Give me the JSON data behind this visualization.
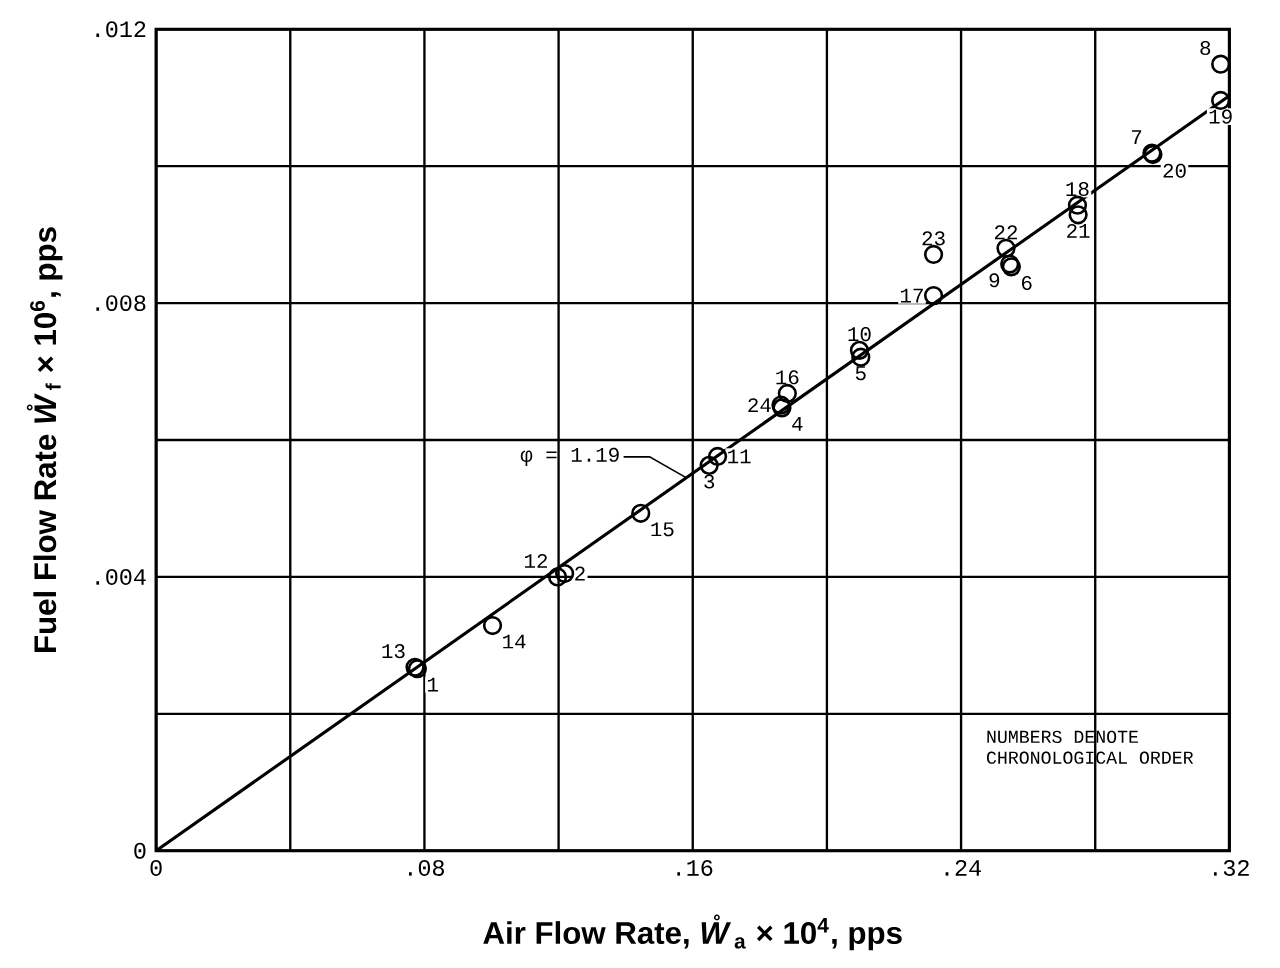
{
  "chart_data": {
    "type": "scatter",
    "xlabel": "Air Flow Rate, *W̊*$_{a}$ × 10$^{4}$, pps",
    "ylabel": "Fuel Flow Rate *W̊*$_{f}$ × 10$^{6}$, pps",
    "xlim": [
      0,
      0.32
    ],
    "ylim": [
      0,
      0.012
    ],
    "xticks": [
      0,
      {
        "value": 0.04,
        "label": null
      },
      {
        "value": 0.08,
        "label": ".08"
      },
      {
        "value": 0.12,
        "label": null
      },
      {
        "value": 0.16,
        "label": ".16"
      },
      {
        "value": 0.2,
        "label": null
      },
      {
        "value": 0.24,
        "label": ".24"
      },
      {
        "value": 0.28,
        "label": null
      },
      {
        "value": 0.32,
        "label": ".32"
      }
    ],
    "yticks": [
      0,
      {
        "value": 0.002,
        "label": null
      },
      {
        "value": 0.004,
        "label": ".004"
      },
      {
        "value": 0.006,
        "label": null
      },
      {
        "value": 0.008,
        "label": ".008"
      },
      {
        "value": 0.01,
        "label": null
      },
      {
        "value": 0.012,
        "label": ".012"
      }
    ],
    "grid": true,
    "marker": "circle",
    "series": [
      {
        "color": "#000000",
        "x": [
          0.0779,
          0.1218,
          0.1649,
          0.1866,
          0.2101,
          0.255,
          0.2969,
          0.3174,
          0.2545,
          0.2097,
          0.1674,
          0.1197,
          0.0772,
          0.1003,
          0.1445,
          0.1882,
          0.2318,
          0.2747,
          0.3174,
          0.2972,
          0.2749,
          0.2534,
          0.2318,
          0.1863
        ],
        "values": [
          0.00266,
          0.00405,
          0.00563,
          0.00647,
          0.00721,
          0.00853,
          0.01019,
          0.01149,
          0.00857,
          0.00731,
          0.00576,
          0.004,
          0.00268,
          0.00329,
          0.00493,
          0.00668,
          0.00811,
          0.00943,
          0.01096,
          0.01017,
          0.00929,
          0.0088,
          0.00871,
          0.00651
        ]
      },
      {
        "type": "line",
        "color": "#000000",
        "marker": "none",
        "x": [
          0,
          0.32
        ],
        "values": [
          0,
          0.01103
        ]
      }
    ],
    "annotations": [
      {
        "text": "1",
        "x": 0.0779,
        "y": 0.00266
      },
      {
        "text": "2",
        "x": 0.1218,
        "y": 0.00405
      },
      {
        "text": "3",
        "x": 0.1649,
        "y": 0.00563
      },
      {
        "text": "4",
        "x": 0.1866,
        "y": 0.00647
      },
      {
        "text": "5",
        "x": 0.2101,
        "y": 0.00721
      },
      {
        "text": "6",
        "x": 0.255,
        "y": 0.00853
      },
      {
        "text": "7",
        "x": 0.2969,
        "y": 0.01019
      },
      {
        "text": "8",
        "x": 0.3174,
        "y": 0.01149
      },
      {
        "text": "9",
        "x": 0.2545,
        "y": 0.00857
      },
      {
        "text": "10",
        "x": 0.2097,
        "y": 0.00731
      },
      {
        "text": "11",
        "x": 0.1674,
        "y": 0.00576
      },
      {
        "text": "12",
        "x": 0.1197,
        "y": 0.004
      },
      {
        "text": "13",
        "x": 0.0772,
        "y": 0.00268
      },
      {
        "text": "14",
        "x": 0.1003,
        "y": 0.00329
      },
      {
        "text": "15",
        "x": 0.1445,
        "y": 0.00493
      },
      {
        "text": "16",
        "x": 0.1882,
        "y": 0.00668
      },
      {
        "text": "17",
        "x": 0.2318,
        "y": 0.00811
      },
      {
        "text": "18",
        "x": 0.2747,
        "y": 0.00943
      },
      {
        "text": "19",
        "x": 0.3174,
        "y": 0.01096
      },
      {
        "text": "20",
        "x": 0.2972,
        "y": 0.01017
      },
      {
        "text": "21",
        "x": 0.2749,
        "y": 0.00929
      },
      {
        "text": "22",
        "x": 0.2534,
        "y": 0.0088
      },
      {
        "text": "23",
        "x": 0.2318,
        "y": 0.00871
      },
      {
        "text": "24",
        "x": 0.1863,
        "y": 0.00651
      },
      {
        "text": "φ = 1.19",
        "x": 0.158,
        "y": 0.00545
      },
      "NUMBERS DENOTE CHRONOLOGICAL ORDER"
    ]
  }
}
